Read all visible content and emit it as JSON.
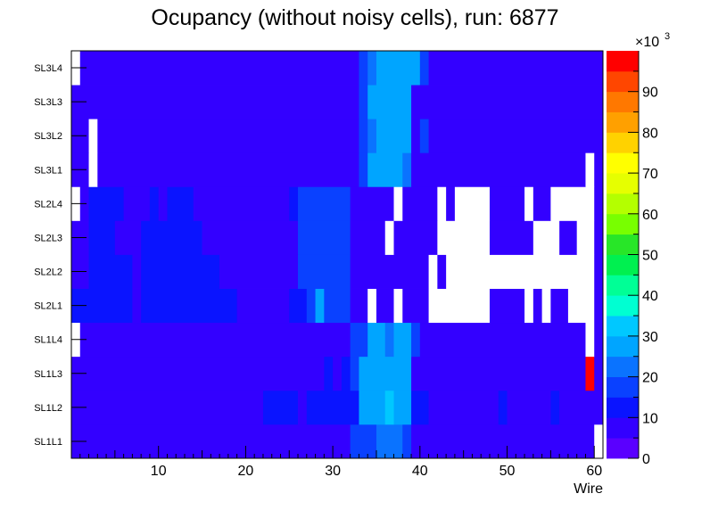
{
  "chart_data": {
    "type": "heatmap",
    "title": "Ocupancy (without noisy cells), run: 6877",
    "xlabel": "Wire",
    "ylabel": "",
    "xlim": [
      0,
      60
    ],
    "x_ticks": [
      "10",
      "20",
      "30",
      "40",
      "50",
      "60"
    ],
    "y_categories": [
      "SL1L1",
      "SL1L2",
      "SL1L3",
      "SL1L4",
      "SL2L1",
      "SL2L2",
      "SL2L3",
      "SL2L4",
      "SL3L1",
      "SL3L2",
      "SL3L3",
      "SL3L4"
    ],
    "colorbar": {
      "exponent_base": "×10",
      "exponent_power": "3",
      "ticks": [
        "0",
        "10",
        "20",
        "30",
        "40",
        "50",
        "60",
        "70",
        "80",
        "90"
      ],
      "zlim": [
        0,
        100000
      ],
      "palette": [
        "#5a00ff",
        "#3300ff",
        "#0a14ff",
        "#0a41ff",
        "#0a73ff",
        "#00a5ff",
        "#00c8ff",
        "#00ffd2",
        "#00ff96",
        "#00f050",
        "#28e628",
        "#78ff00",
        "#b4ff00",
        "#e6ff00",
        "#ffff00",
        "#ffd200",
        "#ffa000",
        "#ff7800",
        "#ff4600",
        "#ff0000"
      ]
    },
    "colors": {
      "base": "#5a00ff",
      "level_10k": "#3300ff",
      "level_15k": "#0a14ff",
      "level_20k": "#0a41ff",
      "level_25k": "#0a73ff",
      "level_30k": "#00a5ff",
      "max": "#ff0000",
      "empty": "#ffffff"
    },
    "row_default_value": 5000,
    "rows": [
      {
        "label": "SL1L1",
        "default": 5000,
        "runs": [
          [
            33,
            35,
            15000
          ],
          [
            36,
            38,
            20000
          ],
          [
            39,
            39,
            15000
          ],
          [
            61,
            61,
            0
          ]
        ]
      },
      {
        "label": "SL1L2",
        "default": 5000,
        "runs": [
          [
            23,
            26,
            10000
          ],
          [
            28,
            33,
            10000
          ],
          [
            34,
            36,
            25000
          ],
          [
            37,
            37,
            30000
          ],
          [
            38,
            39,
            25000
          ],
          [
            40,
            41,
            10000
          ],
          [
            50,
            50,
            10000
          ],
          [
            56,
            56,
            10000
          ]
        ]
      },
      {
        "label": "SL1L3",
        "default": 5000,
        "runs": [
          [
            30,
            30,
            10000
          ],
          [
            32,
            32,
            10000
          ],
          [
            33,
            33,
            15000
          ],
          [
            34,
            39,
            25000
          ],
          [
            60,
            60,
            95000
          ]
        ]
      },
      {
        "label": "SL1L4",
        "default": 5000,
        "runs": [
          [
            1,
            1,
            0
          ],
          [
            33,
            34,
            15000
          ],
          [
            35,
            36,
            25000
          ],
          [
            37,
            37,
            20000
          ],
          [
            38,
            39,
            25000
          ],
          [
            40,
            40,
            15000
          ],
          [
            60,
            60,
            0
          ]
        ]
      },
      {
        "label": "SL2L1",
        "default": 5000,
        "runs": [
          [
            1,
            7,
            10000
          ],
          [
            9,
            19,
            10000
          ],
          [
            26,
            27,
            10000
          ],
          [
            28,
            28,
            15000
          ],
          [
            29,
            29,
            25000
          ],
          [
            30,
            32,
            15000
          ],
          [
            35,
            35,
            0
          ],
          [
            38,
            38,
            0
          ],
          [
            42,
            48,
            0
          ],
          [
            53,
            53,
            0
          ],
          [
            55,
            55,
            0
          ],
          [
            58,
            60,
            0
          ]
        ]
      },
      {
        "label": "SL2L2",
        "default": 5000,
        "runs": [
          [
            3,
            7,
            10000
          ],
          [
            9,
            17,
            10000
          ],
          [
            27,
            32,
            15000
          ],
          [
            42,
            42,
            0
          ],
          [
            44,
            60,
            0
          ]
        ]
      },
      {
        "label": "SL2L3",
        "default": 5000,
        "runs": [
          [
            3,
            5,
            10000
          ],
          [
            9,
            15,
            10000
          ],
          [
            27,
            32,
            15000
          ],
          [
            37,
            37,
            0
          ],
          [
            43,
            48,
            0
          ],
          [
            54,
            56,
            0
          ],
          [
            59,
            60,
            0
          ]
        ]
      },
      {
        "label": "SL2L4",
        "default": 5000,
        "runs": [
          [
            1,
            1,
            0
          ],
          [
            3,
            6,
            10000
          ],
          [
            10,
            10,
            10000
          ],
          [
            12,
            14,
            10000
          ],
          [
            26,
            26,
            10000
          ],
          [
            27,
            32,
            15000
          ],
          [
            38,
            38,
            0
          ],
          [
            43,
            43,
            0
          ],
          [
            45,
            48,
            0
          ],
          [
            53,
            53,
            0
          ],
          [
            56,
            60,
            0
          ]
        ]
      },
      {
        "label": "SL3L1",
        "default": 5000,
        "runs": [
          [
            3,
            3,
            0
          ],
          [
            34,
            34,
            15000
          ],
          [
            35,
            38,
            25000
          ],
          [
            39,
            39,
            20000
          ],
          [
            60,
            60,
            0
          ]
        ]
      },
      {
        "label": "SL3L2",
        "default": 5000,
        "runs": [
          [
            3,
            3,
            0
          ],
          [
            34,
            34,
            15000
          ],
          [
            35,
            35,
            20000
          ],
          [
            36,
            39,
            25000
          ],
          [
            41,
            41,
            15000
          ]
        ]
      },
      {
        "label": "SL3L3",
        "default": 5000,
        "runs": [
          [
            34,
            34,
            15000
          ],
          [
            35,
            39,
            25000
          ]
        ]
      },
      {
        "label": "SL3L4",
        "default": 5000,
        "runs": [
          [
            1,
            1,
            0
          ],
          [
            34,
            34,
            15000
          ],
          [
            35,
            35,
            20000
          ],
          [
            36,
            40,
            25000
          ],
          [
            41,
            41,
            15000
          ]
        ]
      }
    ],
    "grid": false,
    "legend": "colorbar-right"
  }
}
